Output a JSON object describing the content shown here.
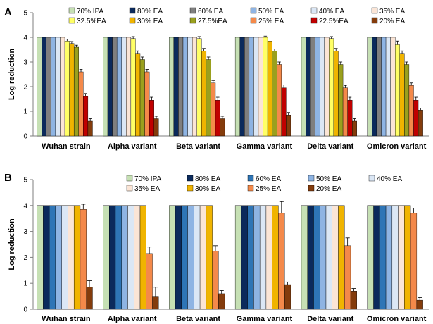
{
  "chart_data": [
    {
      "panel": "A",
      "type": "bar",
      "title": "",
      "xlabel": "",
      "ylabel": "Log reduction",
      "ylim": [
        0,
        5
      ],
      "yticks": [
        0,
        1,
        2,
        3,
        4,
        5
      ],
      "grid": false,
      "legend_position": "top",
      "categories": [
        "Wuhan strain",
        "Alpha variant",
        "Beta variant",
        "Gamma variant",
        "Delta variant",
        "Omicron variant"
      ],
      "series": [
        {
          "name": "70% IPA",
          "color": "#c6e0b4",
          "values": [
            4,
            4,
            4,
            4,
            4,
            4
          ],
          "errors": [
            0,
            0,
            0,
            0,
            0,
            0
          ]
        },
        {
          "name": "80% EA",
          "color": "#0b2a5c",
          "values": [
            4,
            4,
            4,
            4,
            4,
            4
          ],
          "errors": [
            0,
            0,
            0,
            0,
            0,
            0
          ]
        },
        {
          "name": "60% EA",
          "color": "#7f7f7f",
          "values": [
            4,
            4,
            4,
            4,
            4,
            4
          ],
          "errors": [
            0,
            0,
            0,
            0,
            0,
            0
          ]
        },
        {
          "name": "50% EA",
          "color": "#8eb4e3",
          "values": [
            4,
            4,
            4,
            4,
            4,
            4
          ],
          "errors": [
            0,
            0,
            0,
            0,
            0,
            0
          ]
        },
        {
          "name": "40% EA",
          "color": "#dbe7f5",
          "values": [
            4,
            4,
            4,
            4,
            4,
            4
          ],
          "errors": [
            0,
            0,
            0,
            0,
            0,
            0
          ]
        },
        {
          "name": "35% EA",
          "color": "#fbe5d6",
          "values": [
            4,
            4,
            4,
            4,
            4,
            4
          ],
          "errors": [
            0,
            0,
            0,
            0,
            0,
            0
          ]
        },
        {
          "name": "32.5%EA",
          "color": "#ffff66",
          "values": [
            3.85,
            3.95,
            3.95,
            4.0,
            3.95,
            3.7
          ],
          "errors": [
            0.08,
            0.08,
            0.08,
            0.05,
            0.08,
            0.15
          ]
        },
        {
          "name": "30% EA",
          "color": "#f0b400",
          "values": [
            3.75,
            3.35,
            3.45,
            3.85,
            3.45,
            3.35
          ],
          "errors": [
            0.08,
            0.1,
            0.1,
            0.08,
            0.1,
            0.1
          ]
        },
        {
          "name": "27.5%EA",
          "color": "#9aa01e",
          "values": [
            3.6,
            3.1,
            3.1,
            3.45,
            2.9,
            2.9
          ],
          "errors": [
            0.08,
            0.1,
            0.1,
            0.08,
            0.1,
            0.1
          ]
        },
        {
          "name": "25% EA",
          "color": "#f4894a",
          "values": [
            2.6,
            2.6,
            2.15,
            2.9,
            1.95,
            2.05
          ],
          "errors": [
            0.1,
            0.1,
            0.1,
            0.1,
            0.1,
            0.1
          ]
        },
        {
          "name": "22.5%EA",
          "color": "#c00000",
          "values": [
            1.6,
            1.45,
            1.45,
            1.95,
            1.45,
            1.45
          ],
          "errors": [
            0.12,
            0.12,
            0.12,
            0.12,
            0.12,
            0.12
          ]
        },
        {
          "name": "20% EA",
          "color": "#843c0c",
          "values": [
            0.6,
            0.7,
            0.7,
            0.85,
            0.6,
            1.05
          ],
          "errors": [
            0.1,
            0.1,
            0.1,
            0.1,
            0.1,
            0.08
          ]
        }
      ]
    },
    {
      "panel": "B",
      "type": "bar",
      "title": "",
      "xlabel": "",
      "ylabel": "Log reduction",
      "ylim": [
        0,
        5
      ],
      "yticks": [
        0,
        1,
        2,
        3,
        4,
        5
      ],
      "grid": false,
      "legend_position": "top",
      "categories": [
        "Wuhan strain",
        "Alpha variant",
        "Beta variant",
        "Gamma variant",
        "Delta variant",
        "Omicron variant"
      ],
      "series": [
        {
          "name": "70% IPA",
          "color": "#c6e0b4",
          "values": [
            4,
            4,
            4,
            4,
            4,
            4
          ],
          "errors": [
            0,
            0,
            0,
            0,
            0,
            0
          ]
        },
        {
          "name": "80% EA",
          "color": "#0b2a5c",
          "values": [
            4,
            4,
            4,
            4,
            4,
            4
          ],
          "errors": [
            0,
            0,
            0,
            0,
            0,
            0
          ]
        },
        {
          "name": "60% EA",
          "color": "#2e75b6",
          "values": [
            4,
            4,
            4,
            4,
            4,
            4
          ],
          "errors": [
            0,
            0,
            0,
            0,
            0,
            0
          ]
        },
        {
          "name": "50% EA",
          "color": "#8eb4e3",
          "values": [
            4,
            4,
            4,
            4,
            4,
            4
          ],
          "errors": [
            0,
            0,
            0,
            0,
            0,
            0
          ]
        },
        {
          "name": "40% EA",
          "color": "#dbe7f5",
          "values": [
            4,
            4,
            4,
            4,
            4,
            4
          ],
          "errors": [
            0,
            0,
            0,
            0,
            0,
            0
          ]
        },
        {
          "name": "35% EA",
          "color": "#fbe5d6",
          "values": [
            4,
            4,
            4,
            4,
            4,
            4
          ],
          "errors": [
            0,
            0,
            0,
            0,
            0,
            0
          ]
        },
        {
          "name": "30% EA",
          "color": "#f0b400",
          "values": [
            4,
            4,
            4,
            4,
            4,
            4
          ],
          "errors": [
            0,
            0,
            0,
            0,
            0,
            0
          ]
        },
        {
          "name": "25% EA",
          "color": "#f4894a",
          "values": [
            3.85,
            2.15,
            2.25,
            3.7,
            2.45,
            3.7
          ],
          "errors": [
            0.2,
            0.25,
            0.2,
            0.45,
            0.3,
            0.2
          ]
        },
        {
          "name": "20% EA",
          "color": "#843c0c",
          "values": [
            0.85,
            0.5,
            0.6,
            0.95,
            0.7,
            0.35
          ],
          "errors": [
            0.25,
            0.35,
            0.12,
            0.1,
            0.1,
            0.1
          ]
        }
      ]
    }
  ]
}
